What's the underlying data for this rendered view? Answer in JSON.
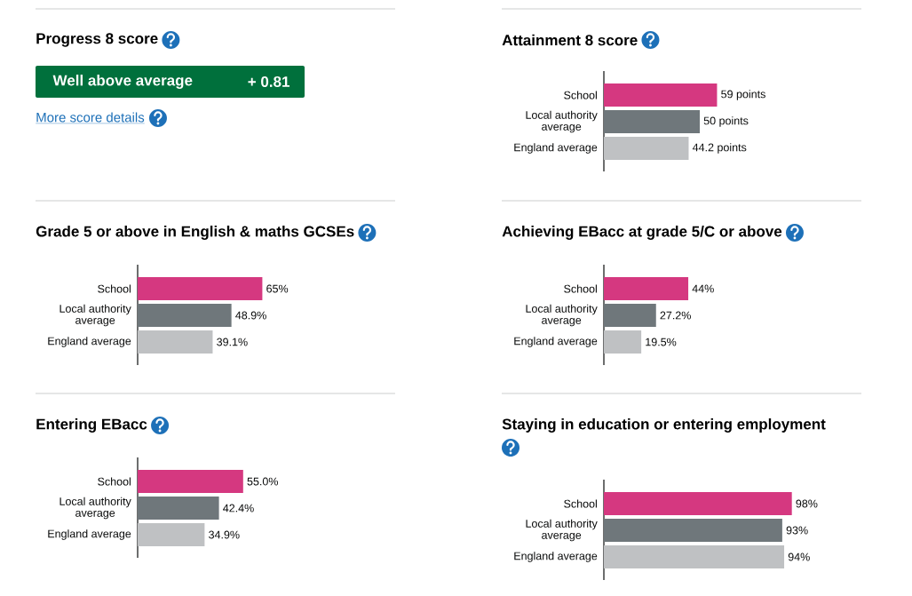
{
  "chart_data": [
    {
      "type": "other",
      "title": "Progress 8 score",
      "annotations": [
        "Well above average",
        "+ 0.81",
        "More score details"
      ]
    },
    {
      "type": "bar",
      "orientation": "horizontal",
      "title": "Attainment 8 score",
      "categories": [
        "School",
        "Local authority average",
        "England average"
      ],
      "values": [
        59,
        50,
        44.2
      ],
      "colors": [
        "#d53880",
        "#6f777b",
        "#bfc1c3"
      ],
      "value_labels": [
        "59 points",
        "50 points",
        "44.2 points"
      ]
    },
    {
      "type": "bar",
      "orientation": "horizontal",
      "title": "Grade 5 or above in English & maths GCSEs",
      "categories": [
        "School",
        "Local authority average",
        "England average"
      ],
      "values": [
        65,
        48.9,
        39.1
      ],
      "colors": [
        "#d53880",
        "#6f777b",
        "#bfc1c3"
      ],
      "value_labels": [
        "65%",
        "48.9%",
        "39.1%"
      ]
    },
    {
      "type": "bar",
      "orientation": "horizontal",
      "title": "Achieving EBacc at grade 5/C or above",
      "categories": [
        "School",
        "Local authority average",
        "England average"
      ],
      "values": [
        44,
        27.2,
        19.5
      ],
      "colors": [
        "#d53880",
        "#6f777b",
        "#bfc1c3"
      ],
      "value_labels": [
        "44%",
        "27.2%",
        "19.5%"
      ]
    },
    {
      "type": "bar",
      "orientation": "horizontal",
      "title": "Entering EBacc",
      "categories": [
        "School",
        "Local authority average",
        "England average"
      ],
      "values": [
        55.0,
        42.4,
        34.9
      ],
      "colors": [
        "#d53880",
        "#6f777b",
        "#bfc1c3"
      ],
      "value_labels": [
        "55.0%",
        "42.4%",
        "34.9%"
      ]
    },
    {
      "type": "bar",
      "orientation": "horizontal",
      "title": "Staying in education or entering employment",
      "categories": [
        "School",
        "Local authority average",
        "England average"
      ],
      "values": [
        98,
        93,
        94
      ],
      "colors": [
        "#d53880",
        "#6f777b",
        "#bfc1c3"
      ],
      "value_labels": [
        "98%",
        "93%",
        "94%"
      ]
    }
  ]
}
